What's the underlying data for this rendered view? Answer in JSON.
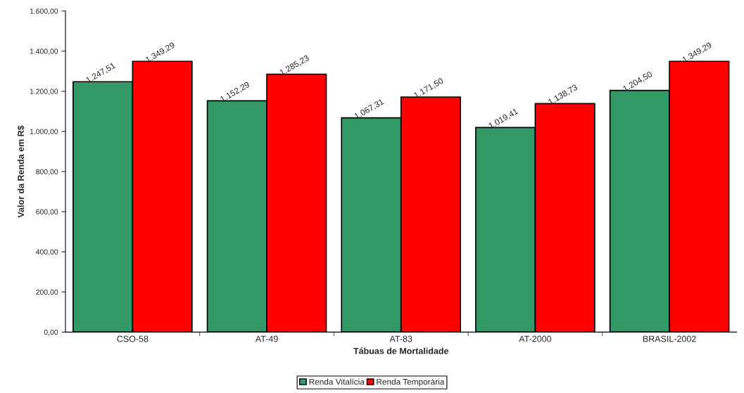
{
  "chart_data": {
    "type": "bar",
    "xlabel": "Tábuas de Mortalidade",
    "ylabel": "Valor da Renda em R$",
    "categories": [
      "CSO-58",
      "AT-49",
      "AT-83",
      "AT-2000",
      "BRASIL-2002"
    ],
    "series": [
      {
        "name": "Renda Vitalícia",
        "color": "#339966",
        "values": [
          1247.51,
          1152.29,
          1067.31,
          1019.41,
          1204.5
        ],
        "value_labels": [
          "1.247,51",
          "1.152,29",
          "1.067,31",
          "1.019,41",
          "1.204,50"
        ]
      },
      {
        "name": "Renda Temporária",
        "color": "#ff0000",
        "values": [
          1349.29,
          1285.23,
          1171.5,
          1138.73,
          1349.29
        ],
        "value_labels": [
          "1.349,29",
          "1.285,23",
          "1.171,50",
          "1.138,73",
          "1.349,29"
        ]
      }
    ],
    "ylim": [
      0,
      1600
    ],
    "yticks": [
      {
        "value": 0,
        "label": "0,00"
      },
      {
        "value": 200,
        "label": "200,00"
      },
      {
        "value": 400,
        "label": "400,00"
      },
      {
        "value": 600,
        "label": "600,00"
      },
      {
        "value": 800,
        "label": "800,00"
      },
      {
        "value": 1000,
        "label": "1.000,00"
      },
      {
        "value": 1200,
        "label": "1.200,00"
      },
      {
        "value": 1400,
        "label": "1.400,00"
      },
      {
        "value": 1600,
        "label": "1.600,00"
      }
    ],
    "grid": false,
    "legend": "bottom"
  }
}
